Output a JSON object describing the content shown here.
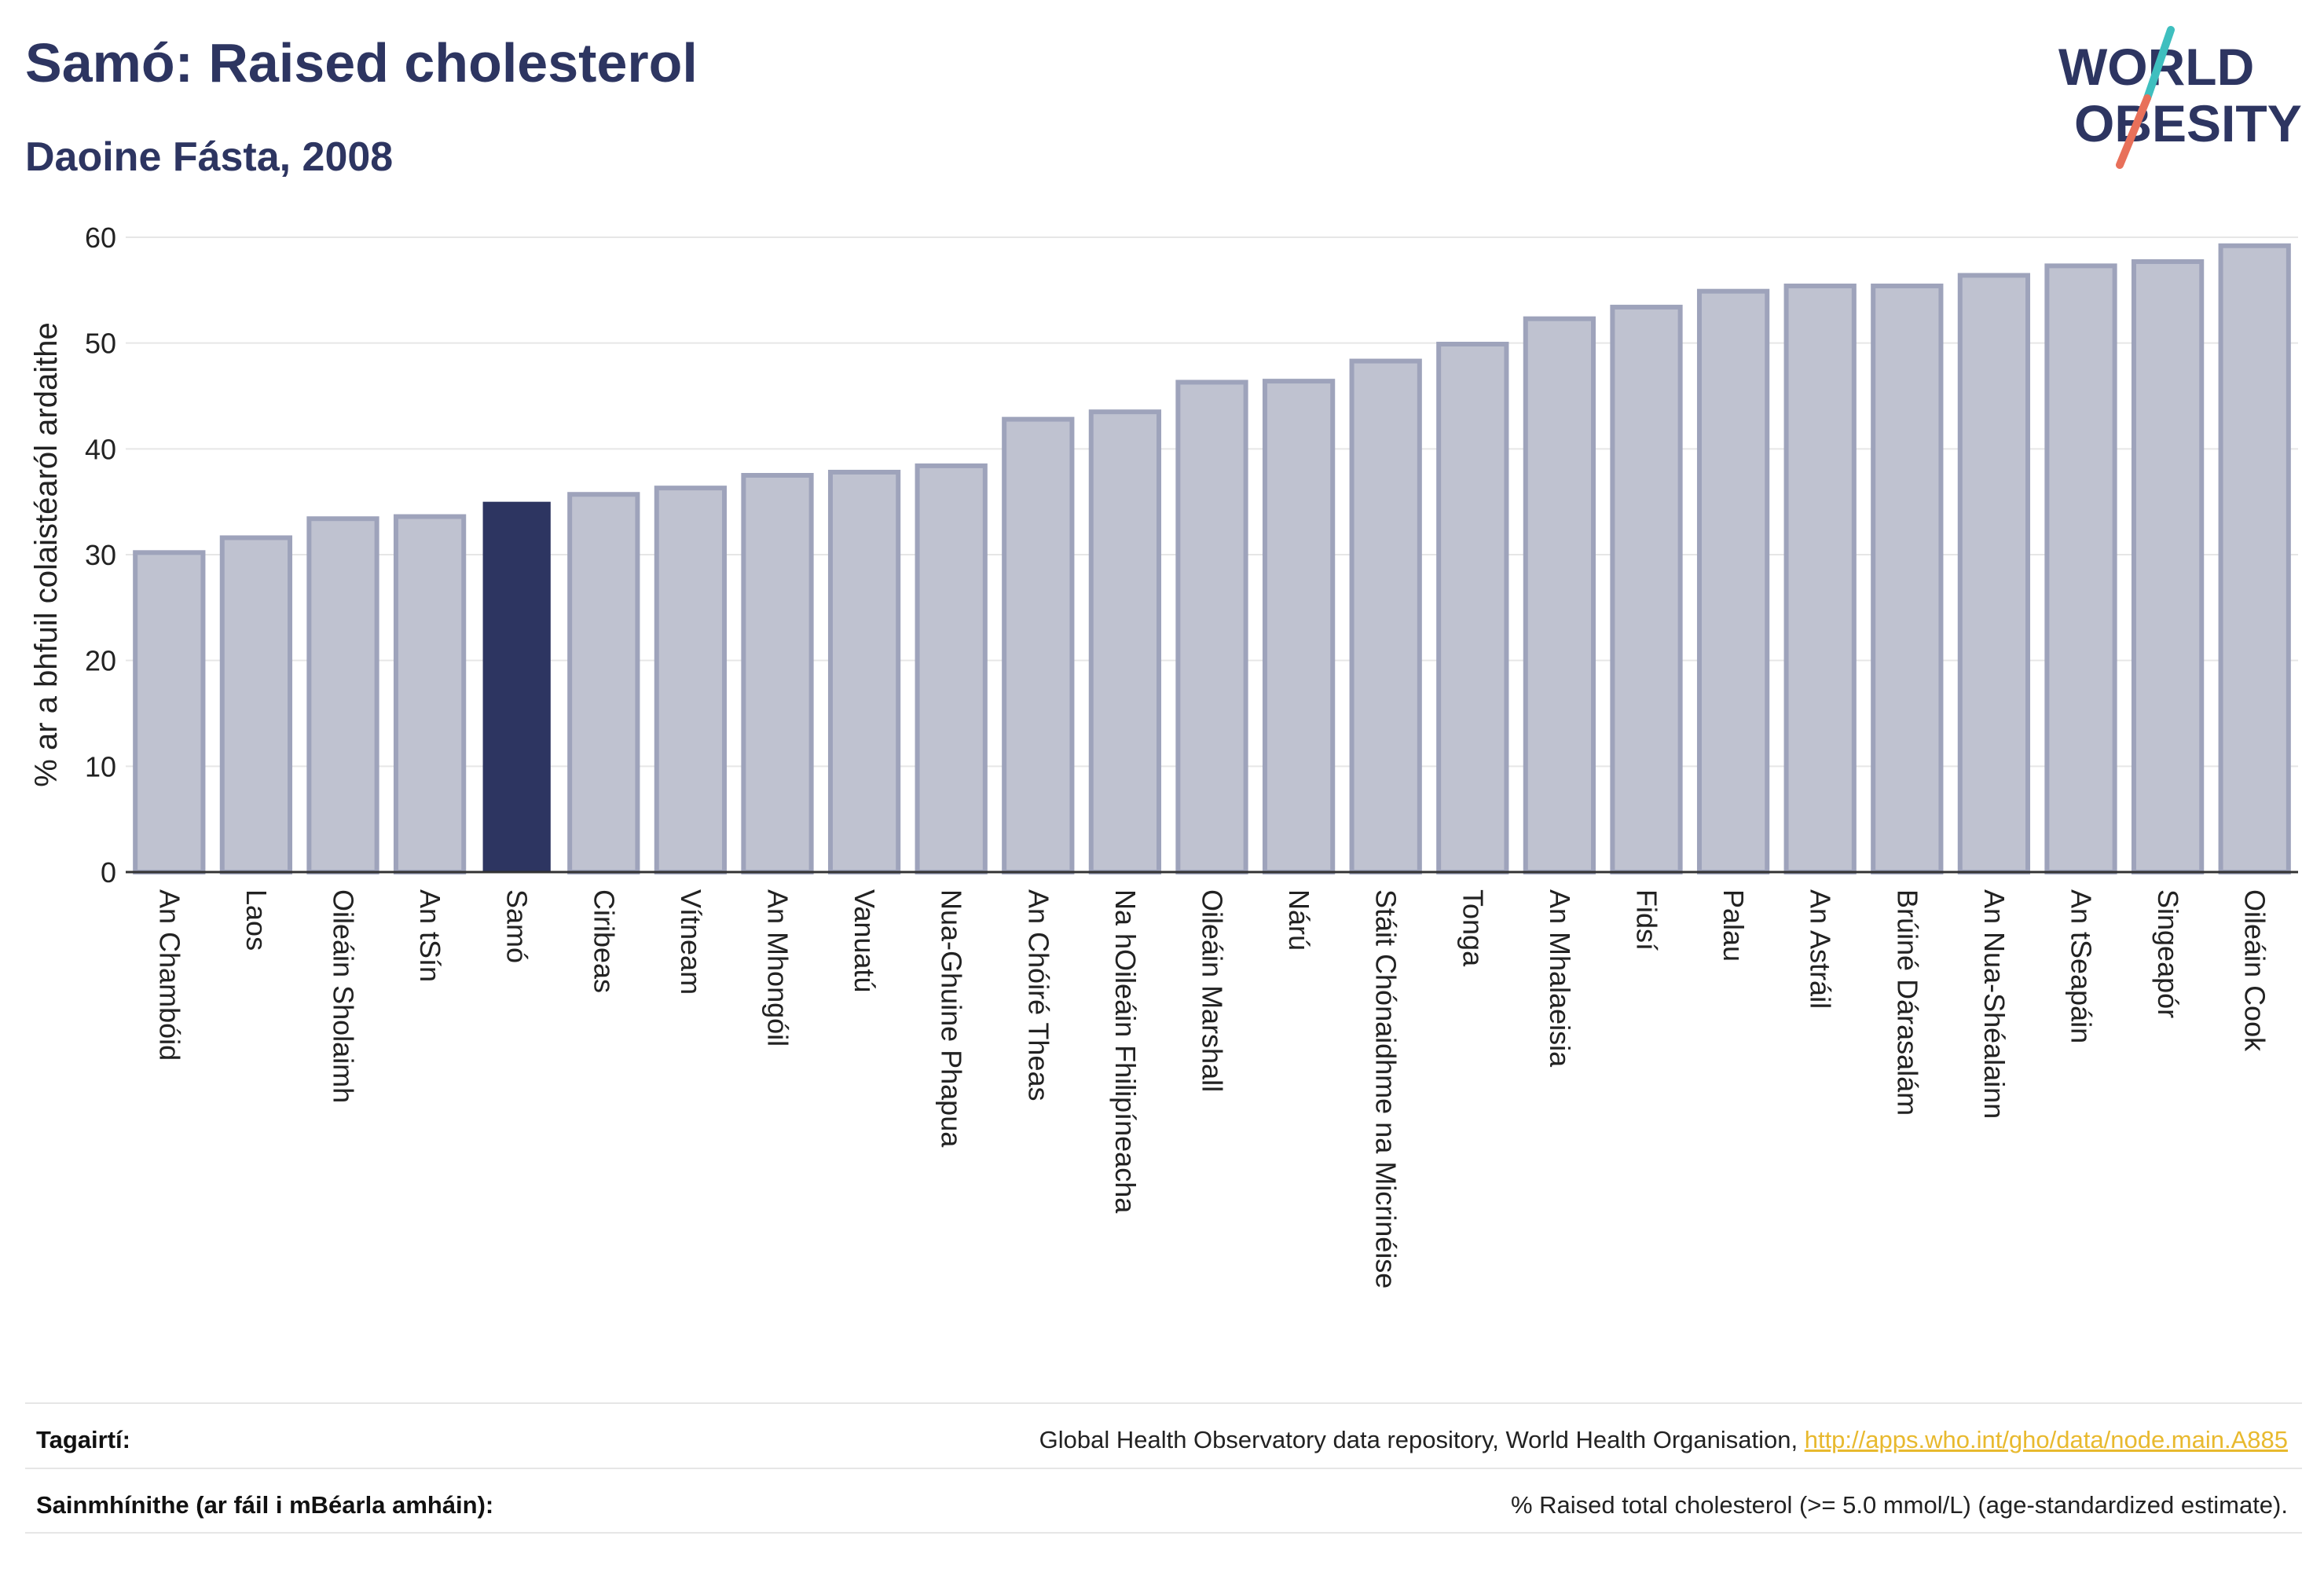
{
  "header": {
    "title": "Samó: Raised cholesterol",
    "subtitle": "Daoine Fásta, 2008"
  },
  "logo": {
    "line1": "WORLD",
    "line2": "OBESITY",
    "text_color": "#2d3561",
    "accent_teal": "#3fbfbf",
    "accent_coral": "#e8705a"
  },
  "chart_data": {
    "type": "bar",
    "title": "Samó: Raised cholesterol",
    "subtitle": "Daoine Fásta, 2008",
    "ylabel": "% ar a bhfuil colaistéaról ardaithe",
    "xlabel": "",
    "ylim": [
      0,
      60
    ],
    "yticks": [
      0,
      10,
      20,
      30,
      40,
      50,
      60
    ],
    "grid": true,
    "highlight_category": "Samó",
    "colors": {
      "bar": "#bfc2d0",
      "bar_border": "#9ea3bb",
      "highlight": "#2d3561",
      "grid": "#e6e6e6",
      "axis": "#333333"
    },
    "categories": [
      "An Chambóid",
      "Laos",
      "Oileáin Sholaimh",
      "An tSín",
      "Samó",
      "Ciribeas",
      "Vítneam",
      "An Mhongóil",
      "Vanuatú",
      "Nua-Ghuine Phapua",
      "An Chóiré Theas",
      "Na hOileáin Fhilipíneacha",
      "Oileáin Marshall",
      "Nárú",
      "Stáit Chónaidhme na Micrinéise",
      "Tonga",
      "An Mhalaeisia",
      "Fidsí",
      "Palau",
      "An Astráil",
      "Brúiné Dárasalám",
      "An Nua-Shéalainn",
      "An tSeapáin",
      "Singeapór",
      "Oileáin Cook"
    ],
    "values": [
      30.2,
      31.6,
      33.4,
      33.6,
      35.0,
      35.7,
      36.3,
      37.5,
      37.8,
      38.4,
      42.8,
      43.5,
      46.3,
      46.4,
      48.3,
      49.9,
      52.3,
      53.4,
      54.9,
      55.4,
      55.4,
      56.4,
      57.3,
      57.7,
      59.2
    ]
  },
  "footer": {
    "references_label": "Tagairtí:",
    "references_text": "Global Health Observatory data repository, World Health Organisation,",
    "references_link": "http://apps.who.int/gho/data/node.main.A885",
    "definitions_label": "Sainmhínithe (ar fáil i mBéarla amháin):",
    "definitions_text": "% Raised total cholesterol (>= 5.0 mmol/L) (age-standardized estimate)."
  }
}
